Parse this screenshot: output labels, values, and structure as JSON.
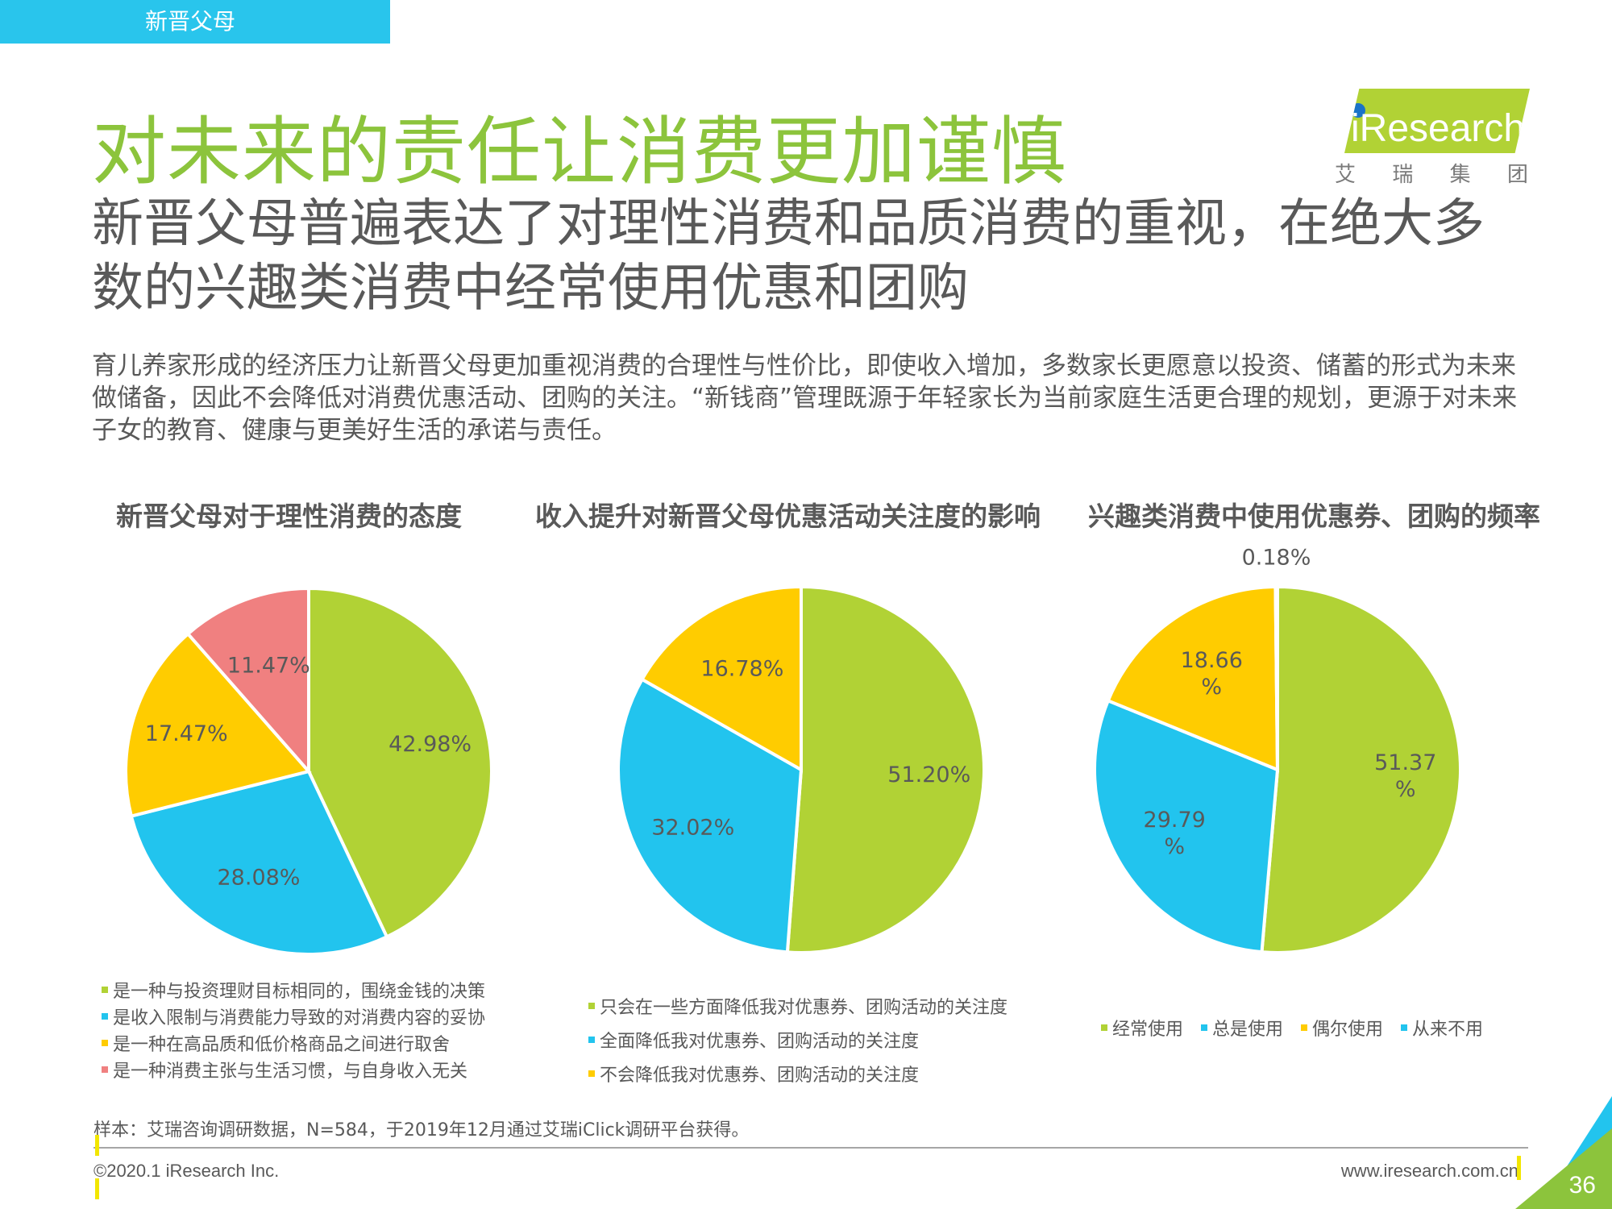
{
  "header": {
    "tag": "新晋父母"
  },
  "title": "对未来的责任让消费更加谨慎",
  "subtitle": "新晋父母普遍表达了对理性消费和品质消费的重视，在绝大多数的兴趣类消费中经常使用优惠和团购",
  "body": "育儿养家形成的经济压力让新晋父母更加重视消费的合理性与性价比，即使收入增加，多数家长更愿意以投资、储蓄的形式为未来做储备，因此不会降低对消费优惠活动、团购的关注。“新钱商”管理既源于年轻家长为当前家庭生活更合理的规划，更源于对未来子女的教育、健康与更美好生活的承诺与责任。",
  "logo": {
    "text": "iResearch",
    "cn": [
      "艾",
      "瑞",
      "集",
      "团"
    ]
  },
  "chart_data": [
    {
      "type": "pie",
      "title": "新晋父母对于理性消费的态度",
      "labels": [
        "是一种与投资理财目标相同的，围绕金钱的决策",
        "是收入限制与消费能力导致的对消费内容的妥协",
        "是一种在高品质和低价格商品之间进行取舍",
        "是一种消费主张与生活习惯，与自身收入无关"
      ],
      "values": [
        42.98,
        28.08,
        17.47,
        11.47
      ],
      "value_labels": [
        "42.98%",
        "28.08%",
        "17.47%",
        "11.47%"
      ],
      "colors": [
        "#b1d235",
        "#22c4ee",
        "#ffcc00",
        "#f08080"
      ],
      "legend": "bottom"
    },
    {
      "type": "pie",
      "title": "收入提升对新晋父母优惠活动关注度的影响",
      "labels": [
        "只会在一些方面降低我对优惠券、团购活动的关注度",
        "全面降低我对优惠券、团购活动的关注度",
        "不会降低我对优惠券、团购活动的关注度"
      ],
      "values": [
        51.2,
        32.02,
        16.78
      ],
      "value_labels": [
        "51.20%",
        "32.02%",
        "16.78%"
      ],
      "colors": [
        "#b1d235",
        "#22c4ee",
        "#ffcc00"
      ],
      "legend": "bottom"
    },
    {
      "type": "pie",
      "title": "兴趣类消费中使用优惠券、团购的频率",
      "labels": [
        "经常使用",
        "总是使用",
        "偶尔使用",
        "从来不用"
      ],
      "values": [
        51.37,
        29.79,
        18.66,
        0.18
      ],
      "value_labels": [
        "51.37\n%",
        "29.79\n%",
        "18.66\n%",
        "0.18%"
      ],
      "colors": [
        "#b1d235",
        "#22c4ee",
        "#ffcc00",
        "#22c4ee"
      ],
      "legend": "bottom"
    }
  ],
  "footer": {
    "source": "样本：艾瑞咨询调研数据，N=584，于2019年12月通过艾瑞iClick调研平台获得。",
    "copyright": "©2020.1 iResearch Inc.",
    "url": "www.iresearch.com.cn",
    "page": "36"
  }
}
